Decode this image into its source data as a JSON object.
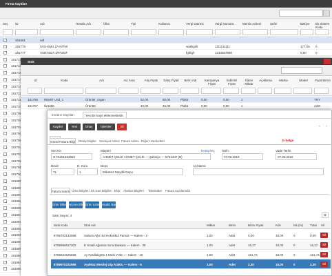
{
  "firma": {
    "title": "Firma Kayıtları",
    "columns": [
      "Seç",
      "ID",
      "Adı",
      "Hesabı Adı",
      "Ülke",
      "Tipi",
      "Kullanıcı",
      "Vergi Dairesi",
      "Vergi Numara",
      "Mersis Adresi",
      "Şehir",
      "Bakiye",
      "Ek Sistem Kodu"
    ],
    "rows": [
      [
        null,
        "261661",
        "adf",
        null,
        null,
        null,
        null,
        null,
        null,
        null,
        null,
        null,
        null
      ],
      [
        null,
        "181779",
        "SVS KMU ZA NİTNİ",
        null,
        null,
        null,
        null,
        "watikgirlt",
        "1111111111",
        null,
        null,
        "177,05",
        "0"
      ],
      [
        null,
        "181777",
        "ASDASDA DFASDF",
        null,
        null,
        null,
        null,
        "fghfgh",
        "1234567890",
        null,
        null,
        "0,00",
        "0"
      ]
    ],
    "id_list": [
      "181717",
      "181716",
      "181715",
      "181714",
      "181713",
      "181712",
      "181711",
      "181710",
      "181709",
      "181708",
      "181707",
      "181706",
      "181705",
      "181704",
      "181703",
      "181702",
      "181701",
      "181700",
      "181699",
      "181698",
      "181697",
      "181696",
      "181695",
      "181694",
      "181693",
      "181692",
      "181691",
      "181690",
      "181689",
      "181688",
      "181687",
      "181686"
    ]
  },
  "stok": {
    "title": "Stok",
    "columns": [
      "Id",
      "Kodu",
      "Adı",
      "Ad. kısa",
      "Alış Fiyatı",
      "Satış Fiyatı",
      "Birim Adı",
      "Kampanya Fiyatı",
      "İndirimli Fiyatı",
      "Kalan Miktar",
      "Açıklama",
      "Marka",
      "Model",
      "Fiyat Birimi"
    ],
    "rows": [
      [
        "181756",
        "REMIT Usd_1",
        "Ürünler_ürgün",
        null,
        "52,00",
        "60,00",
        "Plaka",
        "0,00",
        "0,00",
        "1",
        null,
        null,
        null,
        "TRY"
      ],
      [
        "181757",
        "Ürün56",
        "Ürün56",
        null,
        "40,00",
        "45,00",
        "Plaka",
        "0,00",
        "0,00",
        "1",
        null,
        null,
        null,
        "Adet"
      ]
    ]
  },
  "fatura": {
    "tabs": [
      "Evrakın Kayıtları",
      "Yeni bir kayıt eklenmektedir."
    ],
    "buttons": [
      "Kaydet",
      "Yeni",
      "Onay",
      "İşlemler",
      "Sil"
    ],
    "back": "« Geri",
    "ebelge": "E-belge",
    "section_tabs": [
      "Genel Fatura Bilgileri",
      "Detay bilgiler",
      "Sevkiyat Adresi",
      "Fatura Adresi",
      "Diğer Hareketleri"
    ],
    "fields": [
      {
        "label": "Seri No",
        "value": "GYK201534833"
      },
      {
        "label": "Müşteri",
        "value": "AHMET ÇELİK AHMET ÇELİK — Şahsiye — 5761347 (B)"
      },
      {
        "label": "Tarih",
        "value": "07.02.2019"
      },
      {
        "label": "Vade Tarihi",
        "value": "07.02.2019"
      },
      {
        "label": "Döviz",
        "value": "TL"
      },
      {
        "label": "D. Kuru",
        "value": "1"
      },
      {
        "label": "Depo",
        "value": "Etiketsiz Meydili Depo"
      },
      {
        "label": "Açıklama"
      }
    ],
    "links": [
      "Detay",
      "Seç"
    ],
    "sub_tabs": [
      "Fatura Satırları",
      "Ürün Bilgileri",
      "Ek Kart Bilgileri",
      "Ekip",
      "Alanlar Bilgileri",
      "Tahsilatlar",
      "Fatura Açıklamaları"
    ],
    "line_buttons": [
      "Ürün Ekle",
      "Hizmet Ekle",
      "Ürün Listesi",
      "Analiz Başka"
    ],
    "row_count": "Satır Sayısı: 4",
    "columns": [
      "Stok Kodu",
      "Stok Adı",
      "Miktar",
      "Birim",
      "Birim Fiyatı",
      "Kdv",
      "İsk.(%)",
      "Tutar",
      "Sil"
    ],
    "lines": [
      [
        "8795702132888",
        "Sabuni Ağız Sa Hokukkul Pamuk — Kalem - 2",
        "1,00",
        "Adet",
        "0,00",
        "18,00",
        "0",
        "0,00"
      ],
      [
        "8785958617302",
        "E Small Ağustos Sınu Bankası — Kalem - 38",
        "1,00",
        "Adet",
        "16,27",
        "18,00",
        "0",
        "16,27"
      ],
      [
        "8785944525658",
        "Ay Fardlakgöte 1 Mobi Y Bin — Kalem - 16",
        "1,00",
        "Adet",
        "151,74",
        "18,00",
        "0",
        "151,74"
      ],
      [
        "8789970232966",
        "Aydelaz Mesilej Gip Ataktu — Kalem - 6",
        "1,00",
        "Adet",
        "2,30",
        "18,00",
        "0",
        "2,30"
      ]
    ],
    "delete": "Sil"
  }
}
